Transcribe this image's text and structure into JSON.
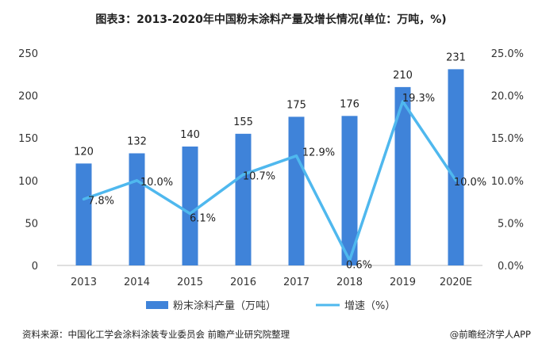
{
  "chart_data": {
    "type": "bar+line",
    "title": "图表3：2013-2020年中国粉末涂料产量及增长情况(单位：万吨，%)",
    "categories": [
      "2013",
      "2014",
      "2015",
      "2016",
      "2017",
      "2018",
      "2019",
      "2020E"
    ],
    "series": [
      {
        "name": "粉末涂料产量（万吨）",
        "type": "bar",
        "axis": "left",
        "values": [
          120,
          132,
          140,
          155,
          175,
          176,
          210,
          231
        ],
        "labels": [
          "120",
          "132",
          "140",
          "155",
          "175",
          "176",
          "210",
          "231"
        ]
      },
      {
        "name": "增速（%）",
        "type": "line",
        "axis": "right",
        "values": [
          7.8,
          10.0,
          6.1,
          10.7,
          12.9,
          0.6,
          19.3,
          10.0
        ],
        "labels": [
          "7.8%",
          "10.0%",
          "6.1%",
          "10.7%",
          "12.9%",
          "0.6%",
          "19.3%",
          "10.0%"
        ]
      }
    ],
    "y_left": {
      "range": [
        0,
        250
      ],
      "ticks": [
        "0",
        "50",
        "100",
        "150",
        "200",
        "250"
      ]
    },
    "y_right": {
      "range": [
        0,
        25
      ],
      "ticks": [
        "0.0%",
        "5.0%",
        "10.0%",
        "15.0%",
        "20.0%",
        "25.0%"
      ]
    },
    "grid": false,
    "legend": "bottom",
    "colors": {
      "bar": "#3f83d9",
      "line": "#4fb8ee"
    }
  },
  "footer": {
    "source": "资料来源：中国化工学会涂料涂装专业委员会 前瞻产业研究院整理",
    "brand": "@前瞻经济学人APP"
  }
}
